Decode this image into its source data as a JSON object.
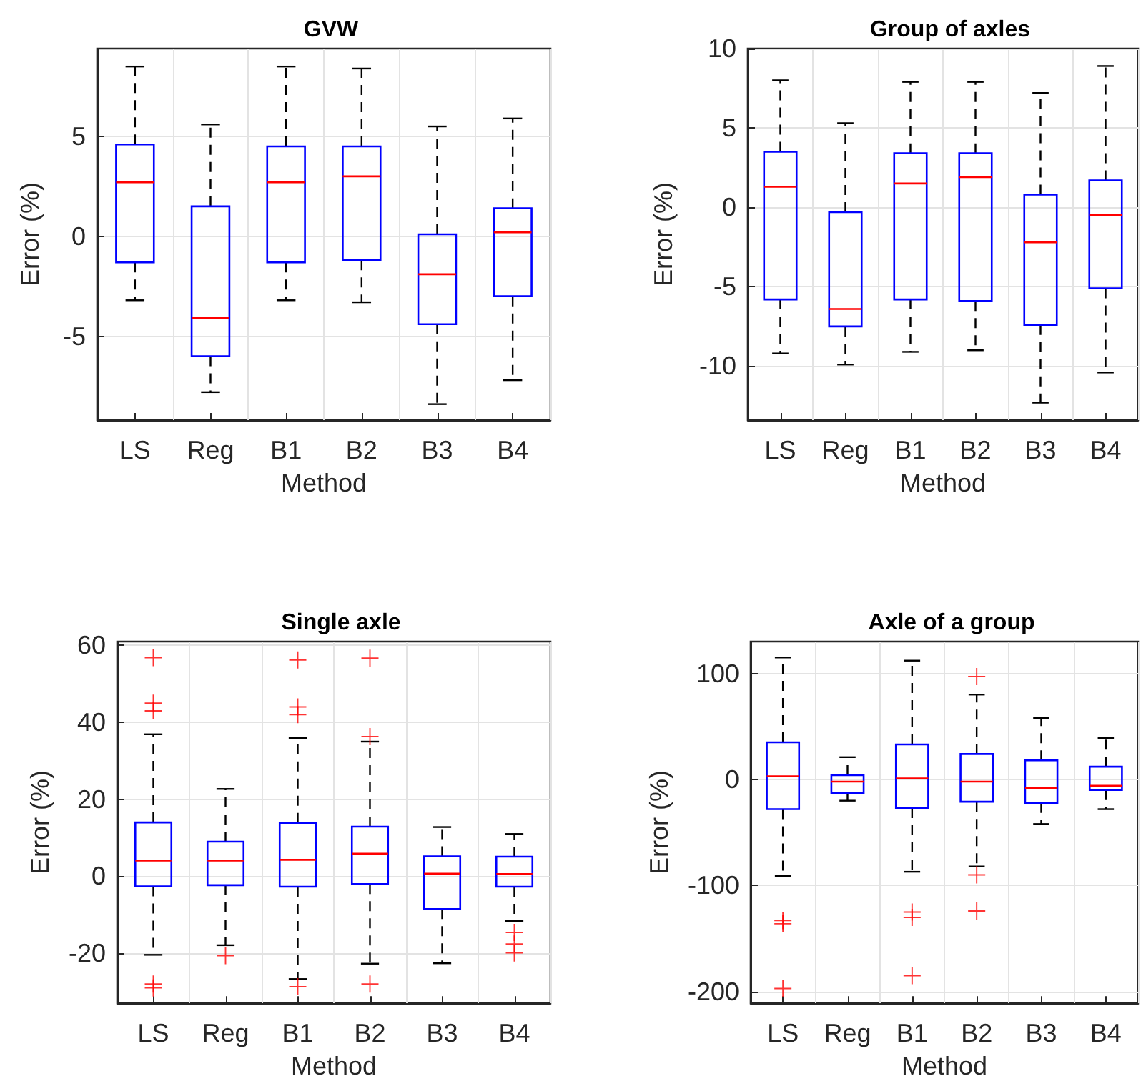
{
  "chart_data": [
    {
      "type": "box",
      "title": "GVW",
      "xlabel": "Method",
      "ylabel": "Error (%)",
      "categories": [
        "LS",
        "Reg",
        "B1",
        "B2",
        "B3",
        "B4"
      ],
      "ylim": [
        -9.2,
        9.4
      ],
      "yticks": [
        -5,
        0,
        5
      ],
      "grid": true,
      "series": [
        {
          "color": "#0000ff",
          "boxes": [
            {
              "low": -3.2,
              "q1": -1.3,
              "median": 2.7,
              "q3": 4.6,
              "high": 8.5
            },
            {
              "low": -7.8,
              "q1": -6.0,
              "median": -4.1,
              "q3": 1.5,
              "high": 5.6
            },
            {
              "low": -3.2,
              "q1": -1.3,
              "median": 2.7,
              "q3": 4.5,
              "high": 8.5
            },
            {
              "low": -3.3,
              "q1": -1.2,
              "median": 3.0,
              "q3": 4.5,
              "high": 8.4
            },
            {
              "low": -8.4,
              "q1": -4.4,
              "median": -1.9,
              "q3": 0.1,
              "high": 5.5
            },
            {
              "low": -7.2,
              "q1": -3.0,
              "median": 0.2,
              "q3": 1.4,
              "high": 5.9
            }
          ]
        }
      ]
    },
    {
      "type": "box",
      "title": "Group of axles",
      "xlabel": "Method",
      "ylabel": "Error (%)",
      "categories": [
        "LS",
        "Reg",
        "B1",
        "B2",
        "B3",
        "B4"
      ],
      "ylim": [
        -13.4,
        10
      ],
      "yticks": [
        -10,
        -5,
        0,
        5,
        10
      ],
      "grid": true,
      "series": [
        {
          "color": "#0000ff",
          "boxes": [
            {
              "low": -9.2,
              "q1": -5.8,
              "median": 1.3,
              "q3": 3.5,
              "high": 8.0
            },
            {
              "low": -9.9,
              "q1": -7.5,
              "median": -6.4,
              "q3": -0.3,
              "high": 5.3
            },
            {
              "low": -9.1,
              "q1": -5.8,
              "median": 1.5,
              "q3": 3.4,
              "high": 7.9
            },
            {
              "low": -9.0,
              "q1": -5.9,
              "median": 1.9,
              "q3": 3.4,
              "high": 7.9
            },
            {
              "low": -12.3,
              "q1": -7.4,
              "median": -2.2,
              "q3": 0.8,
              "high": 7.2
            },
            {
              "low": -10.4,
              "q1": -5.1,
              "median": -0.5,
              "q3": 1.7,
              "high": 8.9
            }
          ]
        }
      ]
    },
    {
      "type": "box",
      "title": "Single axle",
      "xlabel": "Method",
      "ylabel": "Error (%)",
      "categories": [
        "LS",
        "Reg",
        "B1",
        "B2",
        "B3",
        "B4"
      ],
      "ylim": [
        -33,
        61
      ],
      "yticks": [
        -20,
        0,
        20,
        40,
        60
      ],
      "grid": true,
      "series": [
        {
          "color": "#0000ff",
          "boxes": [
            {
              "low": -20.4,
              "q1": -2.6,
              "median": 4.1,
              "q3": 14,
              "high": 36.9,
              "outliers": [
                56.8,
                45,
                43,
                -28,
                -29
              ]
            },
            {
              "low": -17.9,
              "q1": -2.3,
              "median": 4.1,
              "q3": 9,
              "high": 22.7,
              "outliers": [
                -20.6
              ]
            },
            {
              "low": -26.7,
              "q1": -2.7,
              "median": 4.3,
              "q3": 13.9,
              "high": 35.9,
              "outliers": [
                56.2,
                44,
                42,
                -28.7
              ]
            },
            {
              "low": -22.7,
              "q1": -2.0,
              "median": 5.9,
              "q3": 12.9,
              "high": 35,
              "outliers": [
                56.7,
                36.3,
                -28
              ]
            },
            {
              "low": -22.6,
              "q1": -8.5,
              "median": 0.7,
              "q3": 5.2,
              "high": 12.8
            },
            {
              "low": -11.6,
              "q1": -2.7,
              "median": 0.6,
              "q3": 5.1,
              "high": 11,
              "outliers": [
                -14.6,
                -17.6,
                -19.9
              ]
            }
          ]
        }
      ]
    },
    {
      "type": "box",
      "title": "Axle of a group",
      "xlabel": "Method",
      "ylabel": "Error (%)",
      "categories": [
        "LS",
        "Reg",
        "B1",
        "B2",
        "B3",
        "B4"
      ],
      "ylim": [
        -211,
        130
      ],
      "yticks": [
        -200,
        -100,
        0,
        100
      ],
      "grid": true,
      "series": [
        {
          "color": "#0000ff",
          "boxes": [
            {
              "low": -91,
              "q1": -28,
              "median": 3,
              "q3": 35,
              "high": 115,
              "outliers": [
                -133,
                -136,
                -197
              ]
            },
            {
              "low": -20,
              "q1": -13,
              "median": -2,
              "q3": 4,
              "high": 21
            },
            {
              "low": -87,
              "q1": -27,
              "median": 1,
              "q3": 33,
              "high": 112,
              "outliers": [
                -125,
                -130,
                -185
              ]
            },
            {
              "low": -82,
              "q1": -21,
              "median": -2,
              "q3": 24,
              "high": 80,
              "outliers": [
                97,
                -90,
                -124
              ]
            },
            {
              "low": -42,
              "q1": -22,
              "median": -8,
              "q3": 18,
              "high": 58
            },
            {
              "low": -28,
              "q1": -10,
              "median": -6,
              "q3": 12,
              "high": 39
            }
          ]
        }
      ]
    }
  ]
}
